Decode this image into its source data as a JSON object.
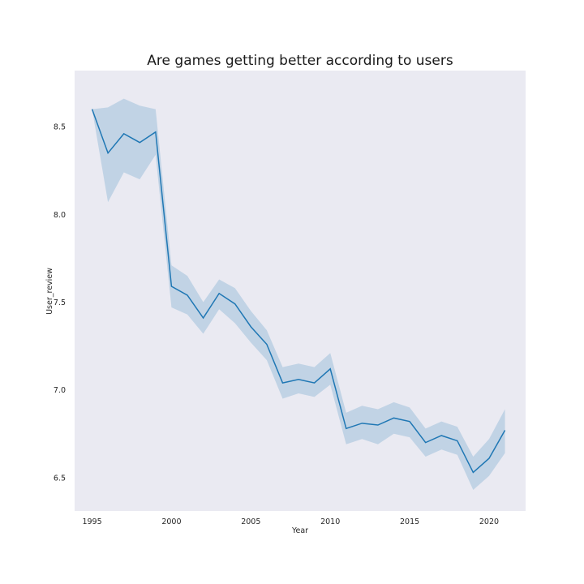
{
  "chart_data": {
    "type": "line",
    "title": "Are games getting better according to users",
    "xlabel": "Year",
    "ylabel": "User_review",
    "xlim": [
      1993.9,
      2022.3
    ],
    "ylim": [
      6.31,
      8.82
    ],
    "xticks": [
      1995,
      2000,
      2005,
      2010,
      2015,
      2020
    ],
    "yticks": [
      6.5,
      7.0,
      7.5,
      8.0,
      8.5
    ],
    "ytick_labels": [
      "6.5",
      "7.0",
      "7.5",
      "8.0",
      "8.5"
    ],
    "grid": false,
    "background": "#eaeaf2",
    "line_color": "#1f77b4",
    "band_color": "#1f77b4",
    "series": [
      {
        "x": [
          1995,
          1996,
          1997,
          1998,
          1999,
          2000,
          2001,
          2002,
          2003,
          2004,
          2005,
          2006,
          2007,
          2008,
          2009,
          2010,
          2011,
          2012,
          2013,
          2014,
          2015,
          2016,
          2017,
          2018,
          2019,
          2020,
          2021
        ],
        "y": [
          8.6,
          8.35,
          8.46,
          8.41,
          8.47,
          7.59,
          7.54,
          7.41,
          7.55,
          7.49,
          7.36,
          7.26,
          7.04,
          7.06,
          7.04,
          7.12,
          6.78,
          6.81,
          6.8,
          6.84,
          6.82,
          6.7,
          6.74,
          6.71,
          6.53,
          6.61,
          6.77
        ],
        "ci_low": [
          8.6,
          8.07,
          8.24,
          8.2,
          8.34,
          7.47,
          7.43,
          7.32,
          7.46,
          7.38,
          7.27,
          7.17,
          6.95,
          6.98,
          6.96,
          7.03,
          6.69,
          6.72,
          6.69,
          6.75,
          6.73,
          6.62,
          6.66,
          6.63,
          6.43,
          6.51,
          6.64
        ],
        "ci_high": [
          8.6,
          8.61,
          8.66,
          8.62,
          8.6,
          7.71,
          7.65,
          7.5,
          7.63,
          7.58,
          7.45,
          7.34,
          7.13,
          7.15,
          7.13,
          7.21,
          6.87,
          6.91,
          6.89,
          6.93,
          6.9,
          6.78,
          6.82,
          6.79,
          6.62,
          6.72,
          6.89
        ]
      }
    ]
  }
}
